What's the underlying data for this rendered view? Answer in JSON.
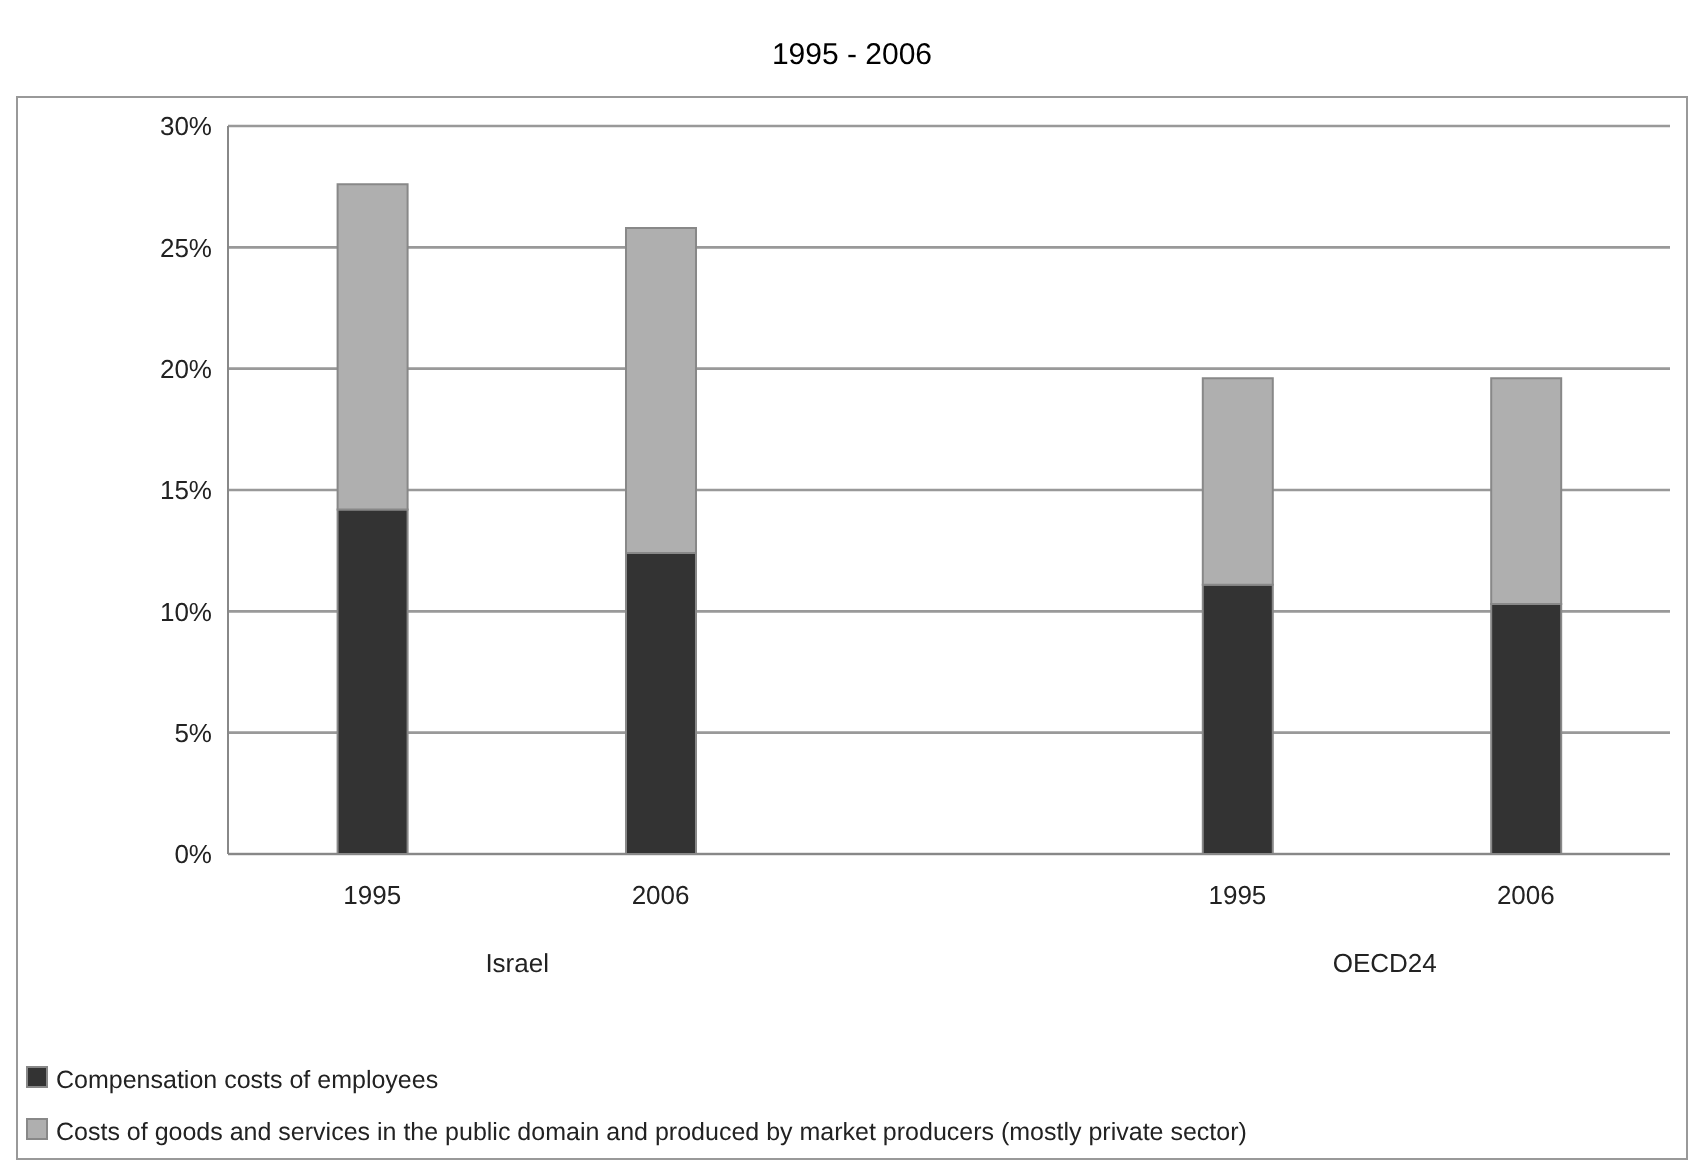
{
  "chart_data": {
    "type": "bar",
    "title": "1995 - 2006",
    "stacked": true,
    "categories": [
      "1995",
      "2006",
      null,
      "1995",
      "2006"
    ],
    "series": [
      {
        "name": "Compensation costs of employees",
        "color": "#333333",
        "values": [
          14.2,
          12.4,
          null,
          11.1,
          10.3
        ]
      },
      {
        "name": "Costs of goods and services in the public domain and produced by market producers (mostly private sector)",
        "color": "#afafaf",
        "values": [
          13.4,
          13.4,
          null,
          8.5,
          9.3
        ]
      }
    ],
    "ylim": [
      0,
      30
    ],
    "yticks": [
      {
        "value": 0,
        "label": "0%"
      },
      {
        "value": 5,
        "label": "5%"
      },
      {
        "value": 10,
        "label": "10%"
      },
      {
        "value": 15,
        "label": "15%"
      },
      {
        "value": 20,
        "label": "20%"
      },
      {
        "value": 25,
        "label": "25%"
      },
      {
        "value": 30,
        "label": "30%"
      }
    ],
    "grid": "y",
    "legend": "bottom left",
    "annotations": [
      "Israel",
      "OECD24"
    ]
  }
}
